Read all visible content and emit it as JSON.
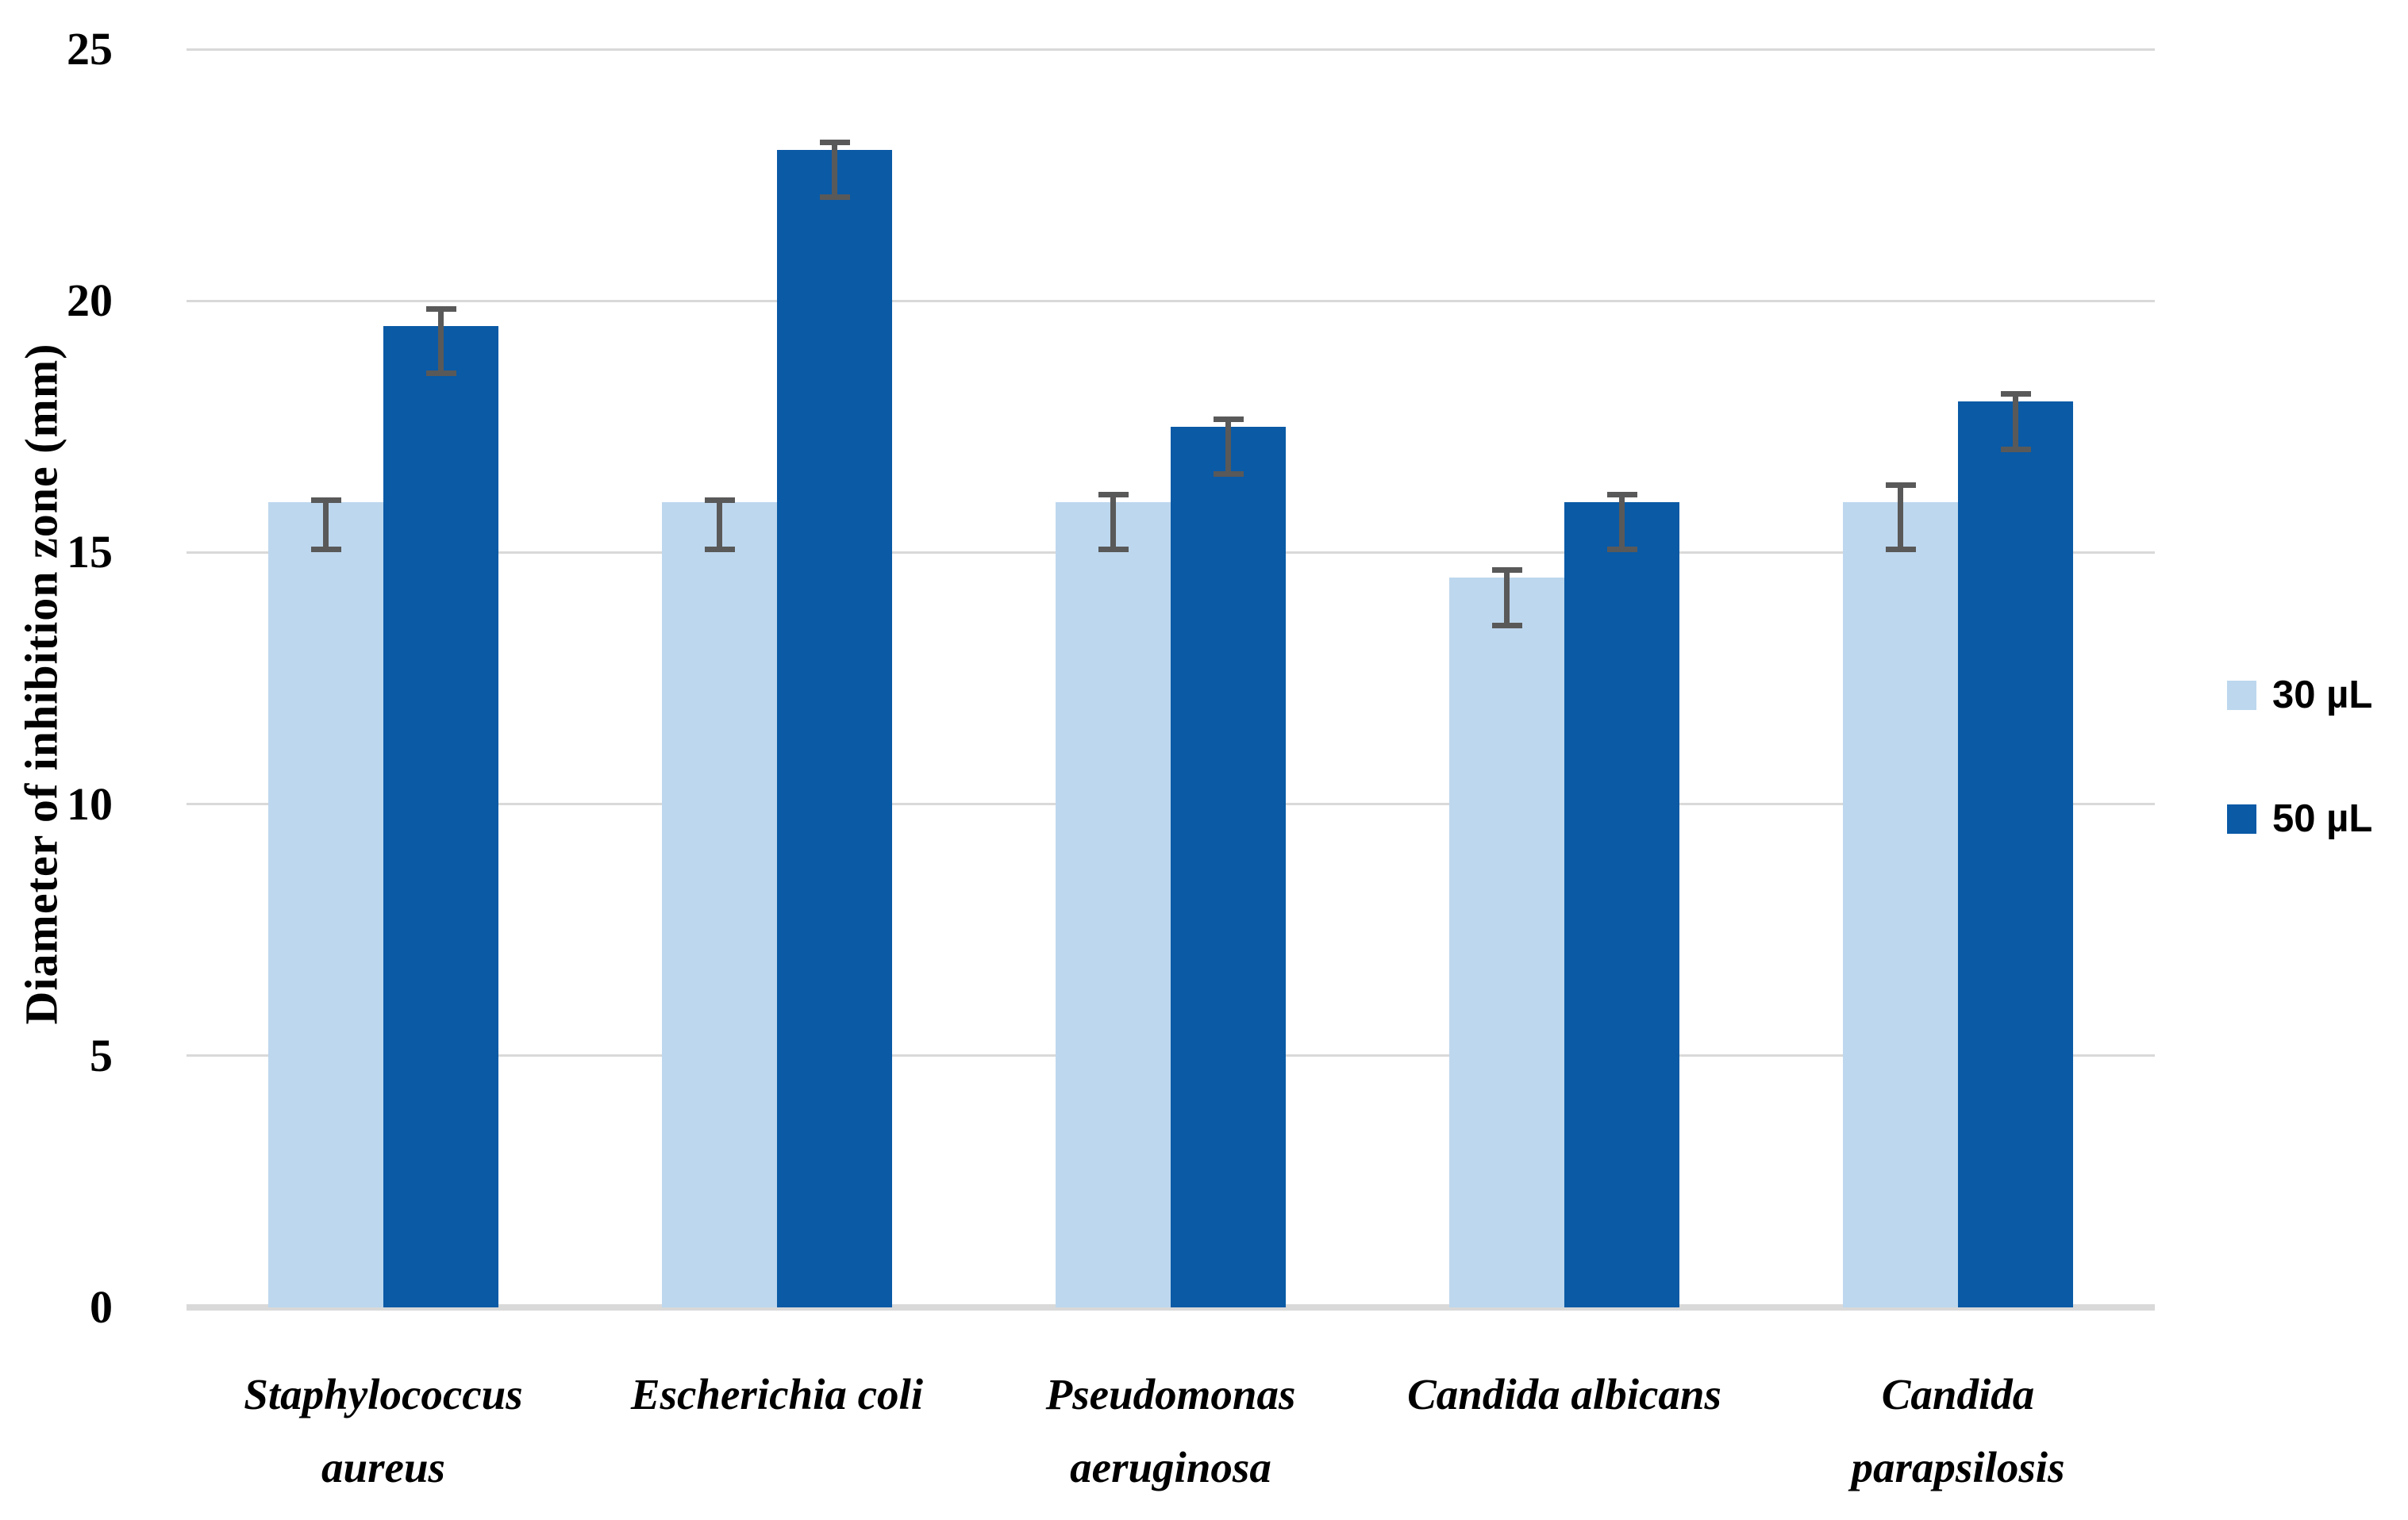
{
  "chart_data": {
    "type": "bar",
    "title": "",
    "ylabel": "Diameter of inhibition zone (mm)",
    "xlabel": "",
    "ylim": [
      0,
      25
    ],
    "ytick_interval": 5,
    "ytick_labels": [
      "0",
      "5",
      "10",
      "15",
      "20",
      "25"
    ],
    "grid": true,
    "legend_position": "right",
    "categories": [
      "Staphylococcus aureus",
      "Escherichia coli",
      "Pseudomonas aeruginosa",
      "Candida albicans",
      "Candida parapsilosis"
    ],
    "category_label_lines": [
      [
        "Staphylococcus",
        "aureus"
      ],
      [
        "Escherichia coli"
      ],
      [
        "Pseudomonas",
        "aeruginosa"
      ],
      [
        "Candida albicans"
      ],
      [
        "Candida",
        "parapsilosis"
      ]
    ],
    "series": [
      {
        "name": "30 µL",
        "color": "#BDD7EE",
        "values": [
          16,
          16,
          16,
          14.5,
          16
        ],
        "error_low": [
          15,
          15,
          15,
          13.5,
          15
        ],
        "error_high": [
          16.1,
          16.1,
          16.2,
          14.7,
          16.4
        ]
      },
      {
        "name": "50 µL",
        "color": "#0A5AA6",
        "values": [
          19.5,
          23,
          17.5,
          16,
          18
        ],
        "error_low": [
          18.5,
          22,
          16.5,
          15,
          17
        ],
        "error_high": [
          19.9,
          23.2,
          17.7,
          16.2,
          18.2
        ]
      }
    ],
    "error_bar_color": "#595959",
    "gridline_color": "#D9D9D9",
    "baseline_color": "#D9D9D9",
    "background_color": "#FFFFFF"
  }
}
